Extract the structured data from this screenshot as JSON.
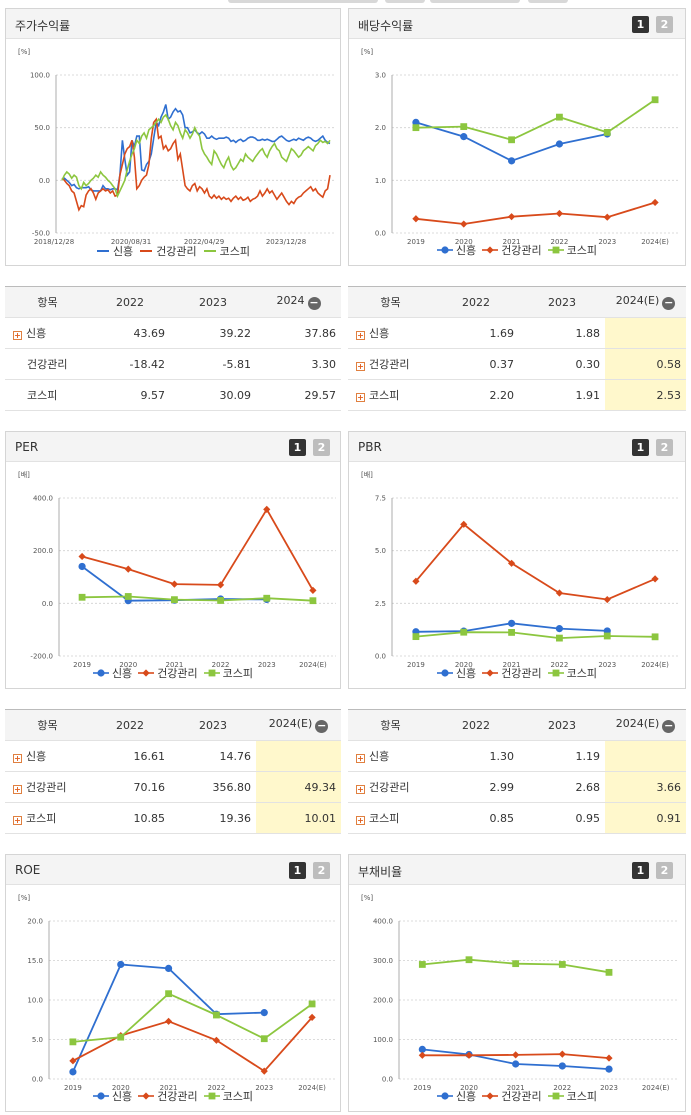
{
  "colors": {
    "shinheung": "#2f6fd0",
    "health": "#d84a1b",
    "kospi": "#8cc63f"
  },
  "legend": [
    "신흥",
    "건강관리",
    "코스피"
  ],
  "pager": {
    "p1": "1",
    "p2": "2"
  },
  "chart_data": [
    {
      "id": "stock",
      "type": "line",
      "title": "주가수익률",
      "unit": "[%]",
      "ylim": [
        -50,
        100
      ],
      "yticks": [
        "100.0",
        "50.0",
        "0.0",
        "-50.0"
      ],
      "xticks": [
        "2018/12/28",
        "2020/08/31",
        "2022/04/29",
        "2023/12/28"
      ],
      "series": [
        {
          "name": "신흥",
          "values": [
            1,
            2,
            0,
            -2,
            -5,
            -4,
            -7,
            -8,
            -7,
            -7,
            -7,
            -6,
            -9,
            -10,
            -10,
            -10,
            -10,
            -5,
            -8,
            -8,
            -9,
            -8,
            -8,
            -9,
            5,
            38,
            20,
            5,
            8,
            38,
            32,
            42,
            42,
            10,
            9,
            15,
            18,
            25,
            40,
            55,
            52,
            60,
            65,
            72,
            58,
            60,
            65,
            68,
            65,
            66,
            62,
            50,
            50,
            45,
            46,
            48,
            45,
            44,
            46,
            44,
            40,
            40,
            42,
            40,
            39,
            40,
            40,
            40,
            41,
            40,
            37,
            38,
            36,
            38,
            39,
            37,
            38,
            40,
            41,
            41,
            40,
            38,
            38,
            39,
            38,
            39,
            38,
            37,
            37,
            39,
            41,
            42,
            40,
            38,
            37,
            38,
            39,
            38,
            40,
            39,
            38,
            40,
            41,
            40,
            38,
            37,
            38,
            40,
            42,
            38,
            36,
            35
          ]
        },
        {
          "name": "건강관리",
          "values": [
            2,
            0,
            -3,
            -5,
            -10,
            -12,
            -20,
            -28,
            -24,
            -25,
            -14,
            -10,
            -8,
            -12,
            -18,
            -12,
            -10,
            -8,
            -10,
            -9,
            -12,
            -10,
            -15,
            -14,
            5,
            15,
            25,
            30,
            32,
            38,
            22,
            -8,
            -5,
            0,
            3,
            5,
            15,
            40,
            55,
            58,
            40,
            42,
            30,
            33,
            28,
            30,
            35,
            38,
            20,
            25,
            10,
            -5,
            -8,
            -10,
            -5,
            -3,
            -10,
            -6,
            -8,
            -12,
            -8,
            -15,
            -17,
            -14,
            -17,
            -15,
            -18,
            -16,
            -18,
            -17,
            -20,
            -17,
            -15,
            -18,
            -16,
            -19,
            -18,
            -16,
            -20,
            -18,
            -17,
            -15,
            -10,
            -15,
            -12,
            -8,
            -12,
            -10,
            -14,
            -18,
            -15,
            -12,
            -16,
            -20,
            -23,
            -20,
            -22,
            -18,
            -16,
            -15,
            -12,
            -10,
            -8,
            -6,
            -10,
            -8,
            -12,
            -14,
            -16,
            -10,
            -8,
            5
          ]
        },
        {
          "name": "코스피",
          "values": [
            0,
            5,
            8,
            6,
            2,
            5,
            3,
            -5,
            -8,
            -2,
            -5,
            -3,
            0,
            2,
            5,
            3,
            8,
            5,
            3,
            0,
            -2,
            -5,
            -8,
            -15,
            -10,
            -5,
            0,
            10,
            18,
            25,
            30,
            38,
            35,
            42,
            45,
            40,
            48,
            50,
            52,
            55,
            58,
            55,
            60,
            62,
            58,
            52,
            48,
            55,
            52,
            45,
            40,
            48,
            45,
            40,
            44,
            50,
            45,
            42,
            30,
            25,
            22,
            18,
            15,
            28,
            25,
            20,
            15,
            12,
            18,
            22,
            14,
            10,
            12,
            16,
            20,
            18,
            25,
            22,
            20,
            18,
            22,
            25,
            28,
            30,
            25,
            22,
            28,
            32,
            35,
            30,
            28,
            22,
            20,
            18,
            24,
            30,
            28,
            25,
            22,
            24,
            28,
            30,
            32,
            30,
            28,
            33,
            35,
            38,
            36,
            37,
            35,
            38
          ]
        }
      ]
    },
    {
      "id": "dividend",
      "type": "line",
      "title": "배당수익률",
      "unit": "[%]",
      "ylim": [
        0,
        3
      ],
      "yticks": [
        "3.0",
        "2.0",
        "1.0",
        "0.0"
      ],
      "categories": [
        "2019",
        "2020",
        "2021",
        "2022",
        "2023",
        "2024(E)"
      ],
      "series": [
        {
          "name": "신흥",
          "values": [
            2.1,
            1.83,
            1.37,
            1.69,
            1.88,
            null
          ]
        },
        {
          "name": "건강관리",
          "values": [
            0.27,
            0.17,
            0.31,
            0.37,
            0.3,
            0.58
          ]
        },
        {
          "name": "코스피",
          "values": [
            2.0,
            2.02,
            1.77,
            2.2,
            1.91,
            2.53
          ]
        }
      ]
    },
    {
      "id": "per",
      "type": "line",
      "title": "PER",
      "unit": "[배]",
      "ylim": [
        -200,
        400
      ],
      "yticks": [
        "400.0",
        "200.0",
        "0.0",
        "-200.0"
      ],
      "categories": [
        "2019",
        "2020",
        "2021",
        "2022",
        "2023",
        "2024(E)"
      ],
      "series": [
        {
          "name": "신흥",
          "values": [
            140,
            10,
            12,
            16.61,
            14.76,
            null
          ]
        },
        {
          "name": "건강관리",
          "values": [
            178,
            130,
            73,
            70.16,
            356.8,
            49.34
          ]
        },
        {
          "name": "코스피",
          "values": [
            23,
            26,
            14,
            10.85,
            19.36,
            10.01
          ]
        }
      ]
    },
    {
      "id": "pbr",
      "type": "line",
      "title": "PBR",
      "unit": "[배]",
      "ylim": [
        0,
        7.5
      ],
      "yticks": [
        "7.5",
        "5.0",
        "2.5",
        "0.0"
      ],
      "categories": [
        "2019",
        "2020",
        "2021",
        "2022",
        "2023",
        "2024(E)"
      ],
      "series": [
        {
          "name": "신흥",
          "values": [
            1.15,
            1.18,
            1.55,
            1.3,
            1.19,
            null
          ]
        },
        {
          "name": "건강관리",
          "values": [
            3.55,
            6.25,
            4.4,
            2.99,
            2.68,
            3.66
          ]
        },
        {
          "name": "코스피",
          "values": [
            0.92,
            1.13,
            1.12,
            0.85,
            0.95,
            0.91
          ]
        }
      ]
    },
    {
      "id": "roe",
      "type": "line",
      "title": "ROE",
      "unit": "[%]",
      "ylim": [
        0,
        20
      ],
      "yticks": [
        "20.0",
        "15.0",
        "10.0",
        "5.0",
        "0.0"
      ],
      "categories": [
        "2019",
        "2020",
        "2021",
        "2022",
        "2023",
        "2024(E)"
      ],
      "series": [
        {
          "name": "신흥",
          "values": [
            0.9,
            14.5,
            14.0,
            8.2,
            8.4,
            null
          ]
        },
        {
          "name": "건강관리",
          "values": [
            2.3,
            5.5,
            7.3,
            4.9,
            1.0,
            7.8
          ]
        },
        {
          "name": "코스피",
          "values": [
            4.7,
            5.3,
            10.8,
            8.1,
            5.1,
            9.5
          ]
        }
      ]
    },
    {
      "id": "debt",
      "type": "line",
      "title": "부채비율",
      "unit": "[%]",
      "ylim": [
        0,
        400
      ],
      "yticks": [
        "400.0",
        "300.0",
        "200.0",
        "100.0",
        "0.0"
      ],
      "categories": [
        "2019",
        "2020",
        "2021",
        "2022",
        "2023",
        "2024(E)"
      ],
      "series": [
        {
          "name": "신흥",
          "values": [
            75,
            62,
            38,
            33,
            25,
            null
          ]
        },
        {
          "name": "건강관리",
          "values": [
            60,
            60,
            61,
            63,
            53,
            null
          ]
        },
        {
          "name": "코스피",
          "values": [
            290,
            302,
            292,
            290,
            270,
            null
          ]
        }
      ]
    }
  ],
  "tables": {
    "stock": {
      "header": [
        "항목",
        "2022",
        "2023",
        "2024"
      ],
      "rows": [
        {
          "label": "신흥",
          "plus": true,
          "values": [
            "43.69",
            "39.22",
            "37.86"
          ]
        },
        {
          "label": "건강관리",
          "plus": false,
          "values": [
            "-18.42",
            "-5.81",
            "3.30"
          ]
        },
        {
          "label": "코스피",
          "plus": false,
          "values": [
            "9.57",
            "30.09",
            "29.57"
          ]
        }
      ]
    },
    "dividend": {
      "header": [
        "항목",
        "2022",
        "2023",
        "2024(E)"
      ],
      "rows": [
        {
          "label": "신흥",
          "plus": true,
          "values": [
            "1.69",
            "1.88",
            ""
          ]
        },
        {
          "label": "건강관리",
          "plus": true,
          "values": [
            "0.37",
            "0.30",
            "0.58"
          ]
        },
        {
          "label": "코스피",
          "plus": true,
          "values": [
            "2.20",
            "1.91",
            "2.53"
          ]
        }
      ]
    },
    "per": {
      "header": [
        "항목",
        "2022",
        "2023",
        "2024(E)"
      ],
      "rows": [
        {
          "label": "신흥",
          "plus": true,
          "values": [
            "16.61",
            "14.76",
            ""
          ]
        },
        {
          "label": "건강관리",
          "plus": true,
          "values": [
            "70.16",
            "356.80",
            "49.34"
          ]
        },
        {
          "label": "코스피",
          "plus": true,
          "values": [
            "10.85",
            "19.36",
            "10.01"
          ]
        }
      ]
    },
    "pbr": {
      "header": [
        "항목",
        "2022",
        "2023",
        "2024(E)"
      ],
      "rows": [
        {
          "label": "신흥",
          "plus": true,
          "values": [
            "1.30",
            "1.19",
            ""
          ]
        },
        {
          "label": "건강관리",
          "plus": true,
          "values": [
            "2.99",
            "2.68",
            "3.66"
          ]
        },
        {
          "label": "코스피",
          "plus": true,
          "values": [
            "0.85",
            "0.95",
            "0.91"
          ]
        }
      ]
    }
  }
}
